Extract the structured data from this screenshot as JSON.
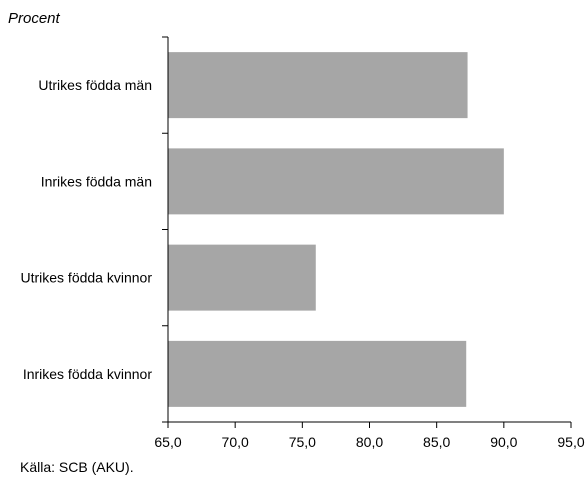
{
  "chart_data": {
    "type": "bar",
    "orientation": "horizontal",
    "title": "",
    "ylabel": "Procent",
    "xlabel": "",
    "categories": [
      "Utrikes födda män",
      "Inrikes födda män",
      "Utrikes födda kvinnor",
      "Inrikes födda kvinnor"
    ],
    "values": [
      87.3,
      90.0,
      76.0,
      87.2
    ],
    "xlim": [
      65,
      95
    ],
    "xticks": [
      "65,0",
      "70,0",
      "75,0",
      "80,0",
      "85,0",
      "90,0",
      "95,0"
    ],
    "grid": false,
    "bar_color": "#a6a6a6",
    "source": "Källa: SCB (AKU)."
  }
}
